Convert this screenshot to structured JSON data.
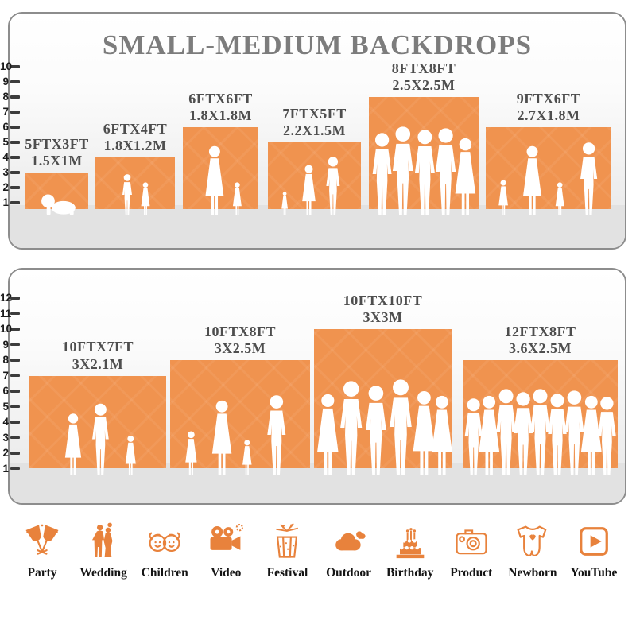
{
  "title": "SMALL-MEDIUM BACKDROPS",
  "colors": {
    "bar_orange": "#F0934F",
    "icon_orange": "#E8823C",
    "title_gray": "#7C7C7C",
    "label_gray": "#4E4E4E",
    "floor_gray": "#E2E2E2",
    "tick_dark": "#3C3C3C"
  },
  "chart_data": [
    {
      "type": "bar",
      "title": "SMALL-MEDIUM BACKDROPS",
      "ylim": [
        0,
        10
      ],
      "y_ticks": [
        1,
        2,
        3,
        4,
        5,
        6,
        7,
        8,
        9,
        10
      ],
      "grid": false,
      "legend": false,
      "categories": [
        "5FTX3FT",
        "6FTX4FT",
        "6FTX6FT",
        "7FTX5FT",
        "8FTX8FT",
        "9FTX6FT"
      ],
      "categories_metric": [
        "1.5X1M",
        "1.8X1.2M",
        "1.8X1.8M",
        "2.2X1.5M",
        "2.5X2.5M",
        "2.7X1.8M"
      ],
      "values": [
        3,
        4,
        6,
        5,
        8,
        6
      ],
      "bar_color": "#F0934F",
      "people": [
        "crawling-baby",
        "boy-and-girl",
        "mother-holding-baby-and-girl",
        "girl-woman-man",
        "group-of-five-adults",
        "family-of-four"
      ]
    },
    {
      "type": "bar",
      "title": "",
      "ylim": [
        0,
        12
      ],
      "y_ticks": [
        1,
        2,
        3,
        4,
        5,
        6,
        7,
        8,
        9,
        10,
        11,
        12
      ],
      "grid": false,
      "legend": false,
      "categories": [
        "10FTX7FT",
        "10FTX8FT",
        "10FTX10FT",
        "12FTX8FT"
      ],
      "categories_metric": [
        "3X2.1M",
        "3X2.5M",
        "3X3M",
        "3.6X2.5M"
      ],
      "values": [
        7,
        8,
        10,
        8
      ],
      "bar_color": "#F0934F",
      "people": [
        "woman-man-and-girl",
        "girl-woman-child-man",
        "group-of-six-adults",
        "group-of-nine-adults"
      ]
    }
  ],
  "category_icons": [
    {
      "label": "Party",
      "icon": "party-icon"
    },
    {
      "label": "Wedding",
      "icon": "wedding-icon"
    },
    {
      "label": "Children",
      "icon": "children-icon"
    },
    {
      "label": "Video",
      "icon": "video-icon"
    },
    {
      "label": "Festival",
      "icon": "festival-icon"
    },
    {
      "label": "Outdoor",
      "icon": "outdoor-icon"
    },
    {
      "label": "Birthday",
      "icon": "birthday-icon"
    },
    {
      "label": "Product",
      "icon": "product-icon"
    },
    {
      "label": "Newborn",
      "icon": "newborn-icon"
    },
    {
      "label": "YouTube",
      "icon": "youtube-icon"
    }
  ]
}
